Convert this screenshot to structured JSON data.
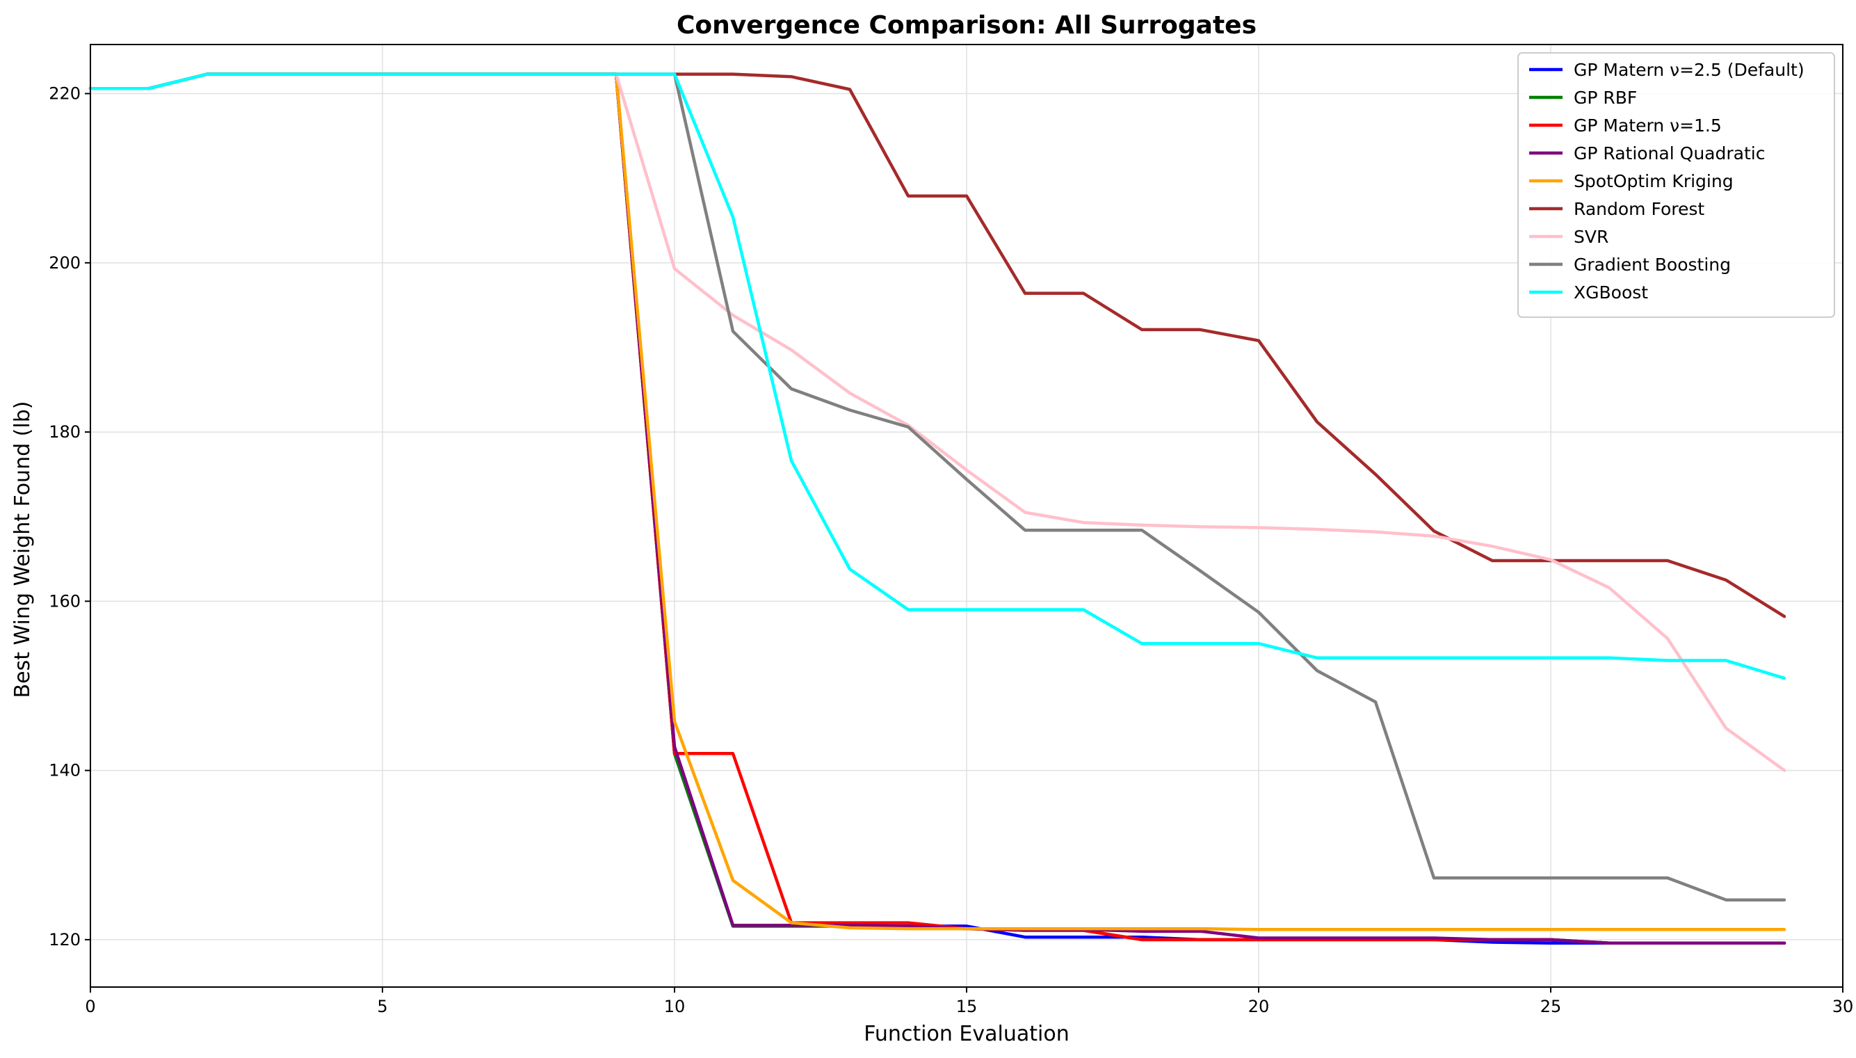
{
  "chart_data": {
    "type": "line",
    "title": "Convergence Comparison: All Surrogates",
    "xlabel": "Function Evaluation",
    "ylabel": "Best Wing Weight Found (lb)",
    "xlim": [
      0,
      30
    ],
    "ylim": [
      114.4,
      225.8
    ],
    "xticks": [
      0,
      5,
      10,
      15,
      20,
      25,
      30
    ],
    "xtick_labels": [
      "0",
      "5",
      "10",
      "15",
      "20",
      "25",
      "30"
    ],
    "yticks": [
      120,
      140,
      160,
      180,
      200,
      220
    ],
    "ytick_labels": [
      "120",
      "140",
      "160",
      "180",
      "200",
      "220"
    ],
    "grid": true,
    "legend_position": "top-right",
    "x": [
      0,
      1,
      2,
      3,
      4,
      5,
      6,
      7,
      8,
      9,
      10,
      11,
      12,
      13,
      14,
      15,
      16,
      17,
      18,
      19,
      20,
      21,
      22,
      23,
      24,
      25,
      26,
      27,
      28,
      29
    ],
    "series": [
      {
        "name": "GP Matern ν=2.5 (Default)",
        "color": "#0000ff",
        "values": [
          220.6,
          220.6,
          222.3,
          222.3,
          222.3,
          222.3,
          222.3,
          222.3,
          222.3,
          222.3,
          142.0,
          121.6,
          121.6,
          121.6,
          121.6,
          121.6,
          120.3,
          120.3,
          120.3,
          120.0,
          120.0,
          120.0,
          120.0,
          120.0,
          119.7,
          119.6,
          119.6,
          119.6,
          119.6,
          119.6
        ]
      },
      {
        "name": "GP RBF",
        "color": "#008000",
        "values": [
          220.6,
          220.6,
          222.3,
          222.3,
          222.3,
          222.3,
          222.3,
          222.3,
          222.3,
          222.3,
          142.0,
          121.6,
          121.6,
          121.6,
          121.6,
          121.3,
          121.1,
          121.1,
          120.0,
          120.0,
          120.0,
          120.0,
          120.0,
          120.0,
          120.0,
          120.0,
          119.6,
          119.6,
          119.6,
          119.6
        ]
      },
      {
        "name": "GP Matern ν=1.5",
        "color": "#ff0000",
        "values": [
          220.6,
          220.6,
          222.3,
          222.3,
          222.3,
          222.3,
          222.3,
          222.3,
          222.3,
          222.3,
          142.0,
          142.0,
          122.0,
          122.0,
          122.0,
          121.3,
          121.1,
          121.1,
          120.0,
          120.0,
          120.0,
          120.0,
          120.0,
          120.0,
          120.0,
          120.0,
          119.6,
          119.6,
          119.6,
          119.6
        ]
      },
      {
        "name": "GP Rational Quadratic",
        "color": "#800080",
        "values": [
          220.6,
          220.6,
          222.3,
          222.3,
          222.3,
          222.3,
          222.3,
          222.3,
          222.3,
          222.3,
          142.8,
          121.7,
          121.7,
          121.7,
          121.6,
          121.3,
          121.2,
          121.2,
          121.0,
          121.0,
          120.2,
          120.2,
          120.2,
          120.2,
          120.0,
          120.0,
          119.6,
          119.6,
          119.6,
          119.6
        ]
      },
      {
        "name": "SpotOptim Kriging",
        "color": "#ffa500",
        "values": [
          220.6,
          220.6,
          222.3,
          222.3,
          222.3,
          222.3,
          222.3,
          222.3,
          222.3,
          222.3,
          145.8,
          127.0,
          122.0,
          121.4,
          121.3,
          121.3,
          121.3,
          121.3,
          121.3,
          121.3,
          121.2,
          121.2,
          121.2,
          121.2,
          121.2,
          121.2,
          121.2,
          121.2,
          121.2,
          121.2
        ]
      },
      {
        "name": "Random Forest",
        "color": "#a52a2a",
        "values": [
          220.6,
          220.6,
          222.3,
          222.3,
          222.3,
          222.3,
          222.3,
          222.3,
          222.3,
          222.3,
          222.3,
          222.3,
          222.0,
          220.5,
          207.9,
          207.9,
          196.4,
          196.4,
          192.1,
          192.1,
          190.8,
          181.2,
          175.0,
          168.3,
          164.8,
          164.8,
          164.8,
          164.8,
          162.5,
          158.2
        ]
      },
      {
        "name": "SVR",
        "color": "#ffc0cb",
        "values": [
          220.6,
          220.6,
          222.3,
          222.3,
          222.3,
          222.3,
          222.3,
          222.3,
          222.3,
          222.3,
          199.3,
          193.8,
          189.7,
          184.6,
          180.8,
          175.5,
          170.5,
          169.3,
          169.0,
          168.8,
          168.7,
          168.5,
          168.2,
          167.7,
          166.5,
          164.9,
          161.6,
          155.6,
          145.0,
          140.0
        ]
      },
      {
        "name": "Gradient Boosting",
        "color": "#808080",
        "values": [
          220.6,
          220.6,
          222.3,
          222.3,
          222.3,
          222.3,
          222.3,
          222.3,
          222.3,
          222.3,
          222.3,
          191.9,
          185.1,
          182.6,
          180.6,
          174.4,
          168.4,
          168.4,
          168.4,
          163.6,
          158.7,
          151.8,
          148.1,
          127.3,
          127.3,
          127.3,
          127.3,
          127.3,
          124.7,
          124.7
        ]
      },
      {
        "name": "XGBoost",
        "color": "#00ffff",
        "values": [
          220.6,
          220.6,
          222.3,
          222.3,
          222.3,
          222.3,
          222.3,
          222.3,
          222.3,
          222.3,
          222.3,
          205.4,
          176.6,
          163.8,
          159.0,
          159.0,
          159.0,
          159.0,
          155.0,
          155.0,
          155.0,
          153.3,
          153.3,
          153.3,
          153.3,
          153.3,
          153.3,
          153.0,
          153.0,
          150.9
        ]
      }
    ]
  }
}
